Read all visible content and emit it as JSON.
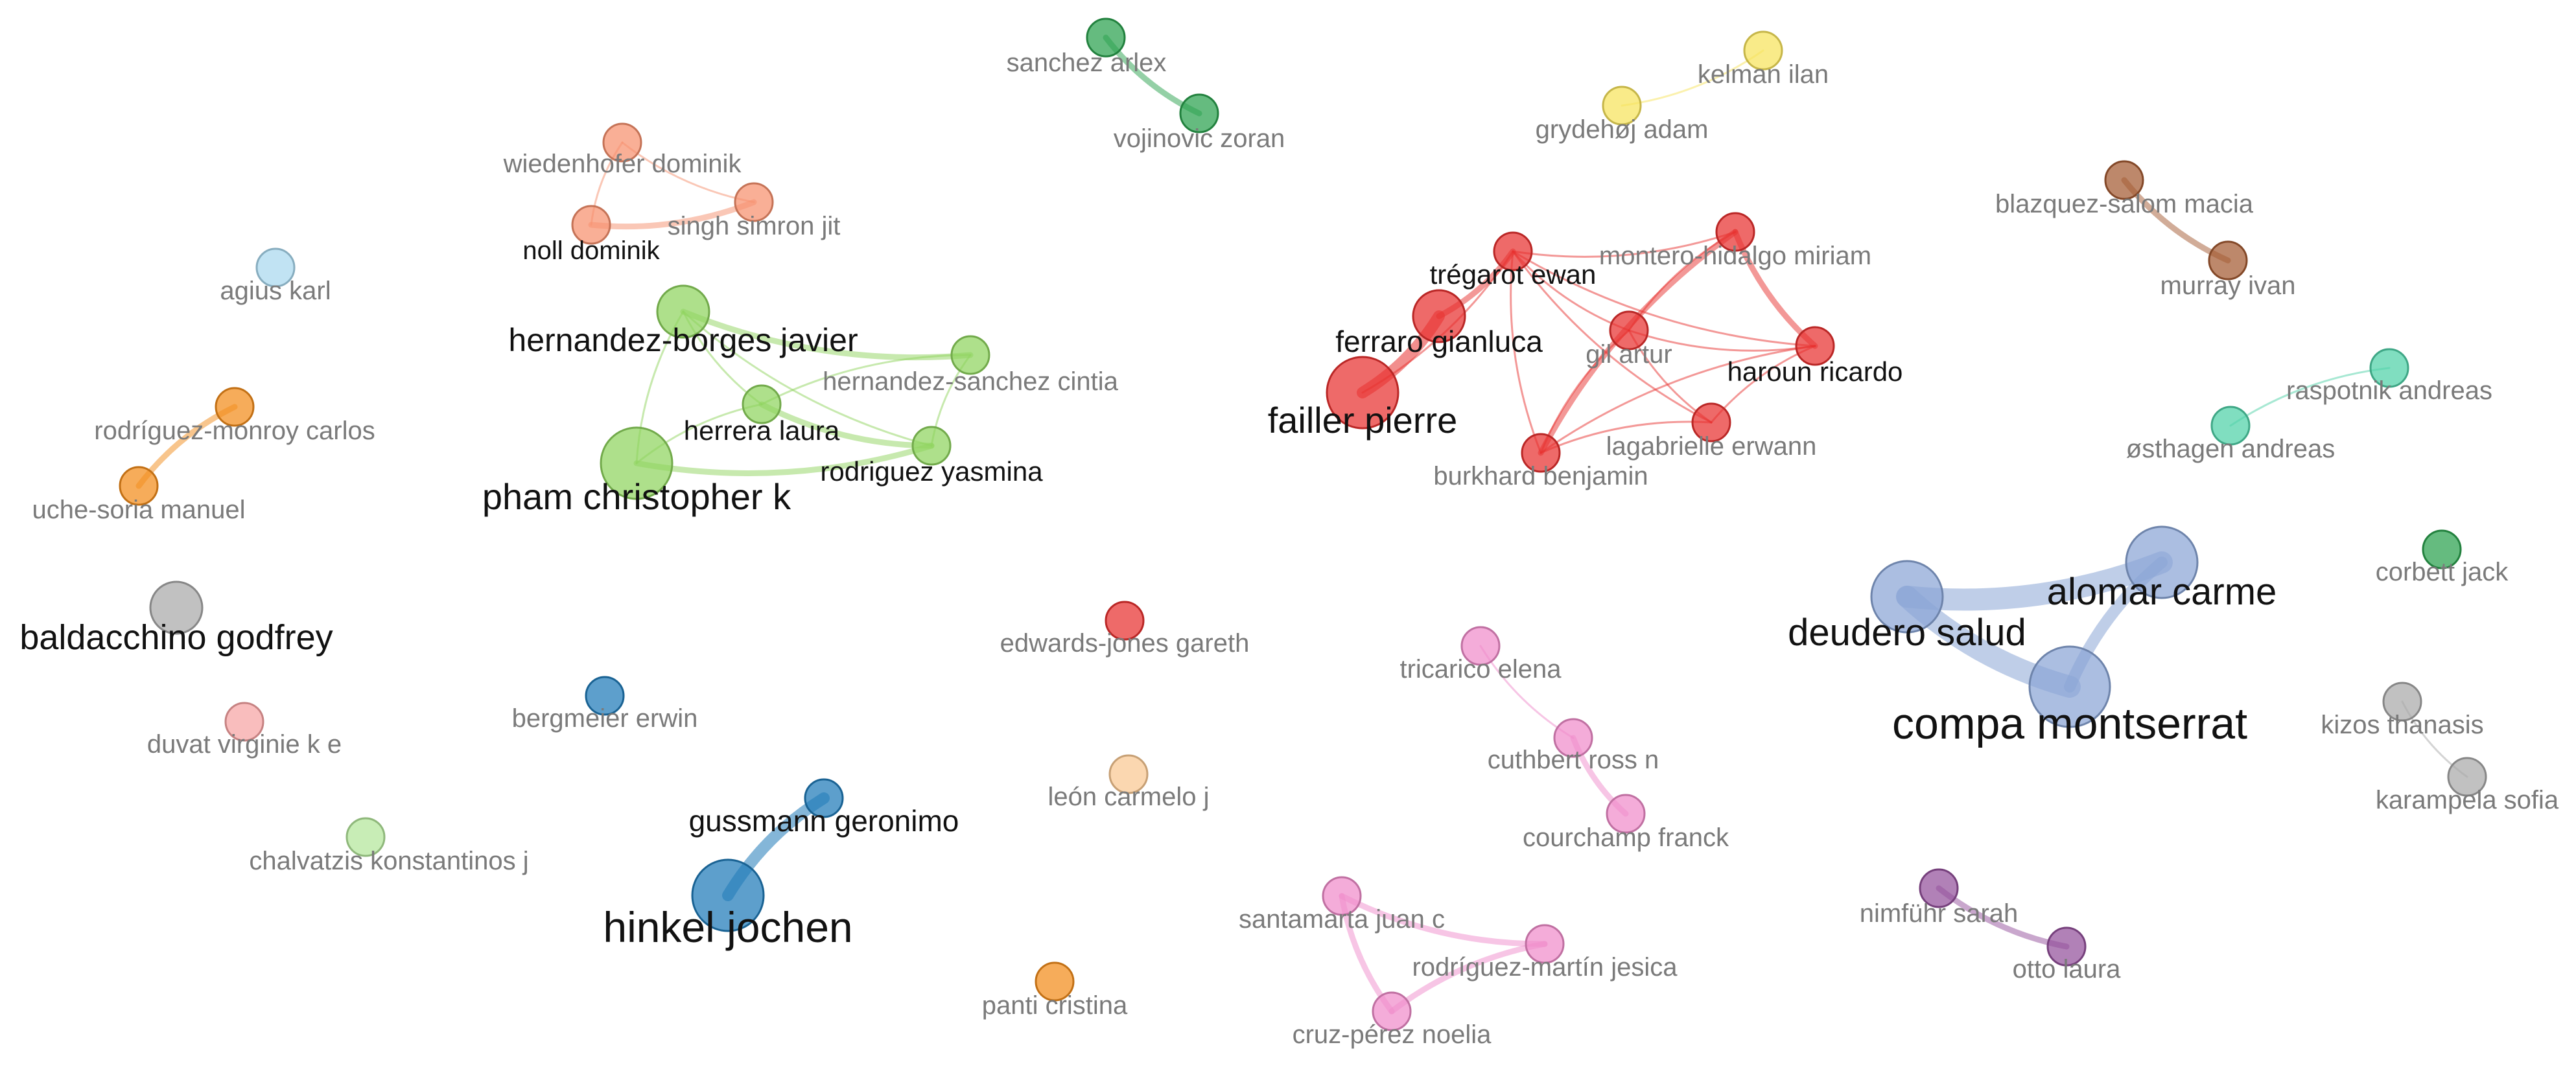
{
  "network": {
    "colors": {
      "red": "#e8312f",
      "green": "#8fd45e",
      "salmon": "#f6906d",
      "blue": "#1f7ab8",
      "lightblue": "#8aa5d6",
      "orange": "#f28c1a",
      "pink": "#f08ccb",
      "purple": "#93509b",
      "brown": "#a45a32",
      "teal": "#4fd1a8",
      "darkgreen": "#2aa14e",
      "grey": "#a9a9a9",
      "yellow": "#f7e35b",
      "pale_blue": "#a9d8ef",
      "pale_red": "#f7a3a3",
      "pale_orange": "#f9c892",
      "pale_green": "#b3e69a"
    },
    "nodes": [
      {
        "id": "sanchez",
        "label": "sanchez arlex",
        "cluster": "darkgreen",
        "weight": 1
      },
      {
        "id": "vojinovic",
        "label": "vojinovic zoran",
        "cluster": "darkgreen",
        "weight": 1
      },
      {
        "id": "kelman",
        "label": "kelman ilan",
        "cluster": "yellow",
        "weight": 1
      },
      {
        "id": "grydehoj",
        "label": "grydehøj adam",
        "cluster": "yellow",
        "weight": 1
      },
      {
        "id": "wiedenhofer",
        "label": "wiedenhofer dominik",
        "cluster": "salmon",
        "weight": 1
      },
      {
        "id": "singh",
        "label": "singh simron jit",
        "cluster": "salmon",
        "weight": 1
      },
      {
        "id": "noll",
        "label": "noll dominik",
        "cluster": "salmon",
        "weight": 1
      },
      {
        "id": "blazquez",
        "label": "blazquez-salom macia",
        "cluster": "brown",
        "weight": 1
      },
      {
        "id": "murray",
        "label": "murray ivan",
        "cluster": "brown",
        "weight": 1
      },
      {
        "id": "agius",
        "label": "agius karl",
        "cluster": "pale_blue",
        "weight": 1
      },
      {
        "id": "hborges",
        "label": "hernandez-borges javier",
        "cluster": "green",
        "weight": 2
      },
      {
        "id": "hsanchez",
        "label": "hernandez-sanchez cintia",
        "cluster": "green",
        "weight": 1
      },
      {
        "id": "herrera",
        "label": "herrera laura",
        "cluster": "green",
        "weight": 1
      },
      {
        "id": "ryasmina",
        "label": "rodriguez yasmina",
        "cluster": "green",
        "weight": 1
      },
      {
        "id": "pham",
        "label": "pham christopher k",
        "cluster": "green",
        "weight": 3
      },
      {
        "id": "tregarot",
        "label": "trégarot ewan",
        "cluster": "red",
        "weight": 1
      },
      {
        "id": "montero",
        "label": "montero-hidalgo miriam",
        "cluster": "red",
        "weight": 1
      },
      {
        "id": "ferraro",
        "label": "ferraro gianluca",
        "cluster": "red",
        "weight": 2
      },
      {
        "id": "gil",
        "label": "gil artur",
        "cluster": "red",
        "weight": 1
      },
      {
        "id": "haroun",
        "label": "haroun ricardo",
        "cluster": "red",
        "weight": 1
      },
      {
        "id": "failler",
        "label": "failler pierre",
        "cluster": "red",
        "weight": 3
      },
      {
        "id": "lagabrielle",
        "label": "lagabrielle erwann",
        "cluster": "red",
        "weight": 1
      },
      {
        "id": "burkhard",
        "label": "burkhard benjamin",
        "cluster": "red",
        "weight": 1
      },
      {
        "id": "raspotnik",
        "label": "raspotnik andreas",
        "cluster": "teal",
        "weight": 1
      },
      {
        "id": "osthagen",
        "label": "østhagen andreas",
        "cluster": "teal",
        "weight": 1
      },
      {
        "id": "rmonroy",
        "label": "rodríguez-monroy carlos",
        "cluster": "orange",
        "weight": 1
      },
      {
        "id": "uche",
        "label": "uche-soria manuel",
        "cluster": "orange",
        "weight": 1
      },
      {
        "id": "baldacchino",
        "label": "baldacchino godfrey",
        "cluster": "grey",
        "weight": 2
      },
      {
        "id": "alomar",
        "label": "alomar carme",
        "cluster": "lightblue",
        "weight": 3
      },
      {
        "id": "deudero",
        "label": "deudero salud",
        "cluster": "lightblue",
        "weight": 3
      },
      {
        "id": "compa",
        "label": "compa montserrat",
        "cluster": "lightblue",
        "weight": 4
      },
      {
        "id": "corbett",
        "label": "corbett jack",
        "cluster": "darkgreen",
        "weight": 1
      },
      {
        "id": "edwards",
        "label": "edwards-jones gareth",
        "cluster": "red",
        "weight": 1
      },
      {
        "id": "tricarico",
        "label": "tricarico elena",
        "cluster": "pink",
        "weight": 1
      },
      {
        "id": "bergmeier",
        "label": "bergmeier erwin",
        "cluster": "blue",
        "weight": 1
      },
      {
        "id": "duvat",
        "label": "duvat virginie k e",
        "cluster": "pale_red",
        "weight": 1
      },
      {
        "id": "cuthbert",
        "label": "cuthbert ross n",
        "cluster": "pink",
        "weight": 1
      },
      {
        "id": "kizos",
        "label": "kizos thanasis",
        "cluster": "grey",
        "weight": 1
      },
      {
        "id": "karampela",
        "label": "karampela sofia",
        "cluster": "grey",
        "weight": 1
      },
      {
        "id": "leon",
        "label": "león carmelo j",
        "cluster": "pale_orange",
        "weight": 1
      },
      {
        "id": "courchamp",
        "label": "courchamp franck",
        "cluster": "pink",
        "weight": 1
      },
      {
        "id": "gussmann",
        "label": "gussmann geronimo",
        "cluster": "blue",
        "weight": 1
      },
      {
        "id": "chalvatzis",
        "label": "chalvatzis konstantinos j",
        "cluster": "pale_green",
        "weight": 1
      },
      {
        "id": "hinkel",
        "label": "hinkel jochen",
        "cluster": "blue",
        "weight": 3
      },
      {
        "id": "santamarta",
        "label": "santamarta juan c",
        "cluster": "pink",
        "weight": 1
      },
      {
        "id": "rmartin",
        "label": "rodríguez-martín jesica",
        "cluster": "pink",
        "weight": 1
      },
      {
        "id": "cruz",
        "label": "cruz-pérez noelia",
        "cluster": "pink",
        "weight": 1
      },
      {
        "id": "nimfuhr",
        "label": "nimführ sarah",
        "cluster": "purple",
        "weight": 1
      },
      {
        "id": "otto",
        "label": "otto laura",
        "cluster": "purple",
        "weight": 1
      },
      {
        "id": "panti",
        "label": "panti cristina",
        "cluster": "orange",
        "weight": 1
      }
    ],
    "links": [
      {
        "source": "sanchez",
        "target": "vojinovic",
        "strength": 2
      },
      {
        "source": "grydehoj",
        "target": "kelman",
        "strength": 1
      },
      {
        "source": "wiedenhofer",
        "target": "singh",
        "strength": 1
      },
      {
        "source": "wiedenhofer",
        "target": "noll",
        "strength": 1
      },
      {
        "source": "noll",
        "target": "singh",
        "strength": 2
      },
      {
        "source": "blazquez",
        "target": "murray",
        "strength": 2
      },
      {
        "source": "hborges",
        "target": "hsanchez",
        "strength": 2
      },
      {
        "source": "hborges",
        "target": "herrera",
        "strength": 1
      },
      {
        "source": "hborges",
        "target": "ryasmina",
        "strength": 1
      },
      {
        "source": "hborges",
        "target": "pham",
        "strength": 1
      },
      {
        "source": "herrera",
        "target": "ryasmina",
        "strength": 2
      },
      {
        "source": "herrera",
        "target": "pham",
        "strength": 1
      },
      {
        "source": "pham",
        "target": "ryasmina",
        "strength": 2
      },
      {
        "source": "hsanchez",
        "target": "herrera",
        "strength": 1
      },
      {
        "source": "hsanchez",
        "target": "ryasmina",
        "strength": 1
      },
      {
        "source": "failler",
        "target": "ferraro",
        "strength": 3
      },
      {
        "source": "ferraro",
        "target": "tregarot",
        "strength": 2
      },
      {
        "source": "failler",
        "target": "tregarot",
        "strength": 1
      },
      {
        "source": "tregarot",
        "target": "montero",
        "strength": 1
      },
      {
        "source": "tregarot",
        "target": "gil",
        "strength": 1
      },
      {
        "source": "tregarot",
        "target": "haroun",
        "strength": 1
      },
      {
        "source": "tregarot",
        "target": "burkhard",
        "strength": 1
      },
      {
        "source": "tregarot",
        "target": "lagabrielle",
        "strength": 1
      },
      {
        "source": "montero",
        "target": "haroun",
        "strength": 2
      },
      {
        "source": "montero",
        "target": "burkhard",
        "strength": 2
      },
      {
        "source": "montero",
        "target": "gil",
        "strength": 1
      },
      {
        "source": "gil",
        "target": "haroun",
        "strength": 1
      },
      {
        "source": "gil",
        "target": "burkhard",
        "strength": 1
      },
      {
        "source": "gil",
        "target": "lagabrielle",
        "strength": 1
      },
      {
        "source": "haroun",
        "target": "burkhard",
        "strength": 1
      },
      {
        "source": "haroun",
        "target": "lagabrielle",
        "strength": 1
      },
      {
        "source": "lagabrielle",
        "target": "burkhard",
        "strength": 1
      },
      {
        "source": "raspotnik",
        "target": "osthagen",
        "strength": 1
      },
      {
        "source": "rmonroy",
        "target": "uche",
        "strength": 2
      },
      {
        "source": "deudero",
        "target": "alomar",
        "strength": 4
      },
      {
        "source": "deudero",
        "target": "compa",
        "strength": 4
      },
      {
        "source": "alomar",
        "target": "compa",
        "strength": 3
      },
      {
        "source": "tricarico",
        "target": "cuthbert",
        "strength": 1
      },
      {
        "source": "cuthbert",
        "target": "courchamp",
        "strength": 2
      },
      {
        "source": "kizos",
        "target": "karampela",
        "strength": 1
      },
      {
        "source": "gussmann",
        "target": "hinkel",
        "strength": 3
      },
      {
        "source": "santamarta",
        "target": "rmartin",
        "strength": 2
      },
      {
        "source": "santamarta",
        "target": "cruz",
        "strength": 2
      },
      {
        "source": "rmartin",
        "target": "cruz",
        "strength": 2
      },
      {
        "source": "nimfuhr",
        "target": "otto",
        "strength": 2
      }
    ]
  }
}
